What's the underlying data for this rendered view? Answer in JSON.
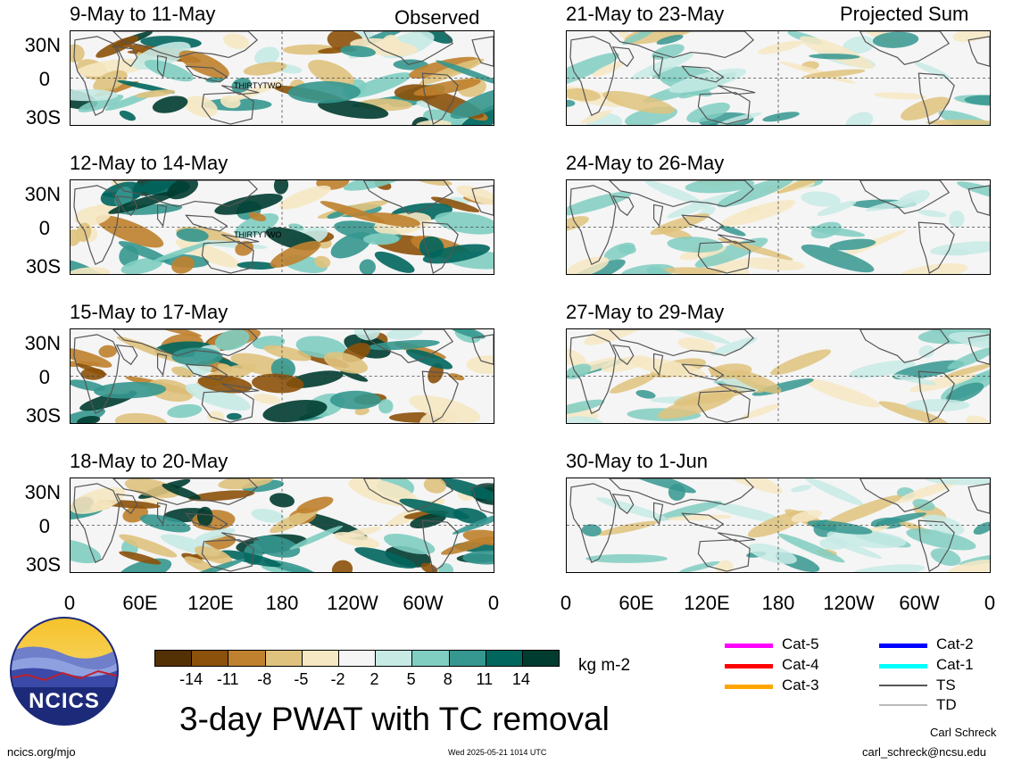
{
  "header": {
    "observed_label": "Observed",
    "projected_label": "Projected Sum"
  },
  "panels": [
    {
      "title": "9-May to 11-May",
      "storm_label": "THIRTYTWO"
    },
    {
      "title": "12-May to 14-May",
      "storm_label": "THIRTYTWO"
    },
    {
      "title": "15-May to 17-May",
      "storm_label": ""
    },
    {
      "title": "18-May to 20-May",
      "storm_label": ""
    },
    {
      "title": "21-May to 23-May",
      "storm_label": ""
    },
    {
      "title": "24-May to 26-May",
      "storm_label": ""
    },
    {
      "title": "27-May to 29-May",
      "storm_label": ""
    },
    {
      "title": "30-May to 1-Jun",
      "storm_label": ""
    }
  ],
  "lat_labels": [
    "30N",
    "0",
    "30S"
  ],
  "lon_labels": [
    "0",
    "60E",
    "120E",
    "180",
    "120W",
    "60W",
    "0"
  ],
  "colorbar": {
    "colors": [
      "#543005",
      "#8c510a",
      "#bf812d",
      "#dfc27d",
      "#f6e8c3",
      "#f5f5f5",
      "#c7eae5",
      "#80cdc1",
      "#35978f",
      "#01665e",
      "#003c30"
    ],
    "tick_labels": [
      "-14",
      "-11",
      "-8",
      "-5",
      "-2",
      "2",
      "5",
      "8",
      "11",
      "14"
    ],
    "units": "kg m-2"
  },
  "legend": [
    {
      "label": "Cat-5",
      "color": "#ff00ff"
    },
    {
      "label": "Cat-4",
      "color": "#ff0000"
    },
    {
      "label": "Cat-3",
      "color": "#ffa500"
    },
    {
      "label": "Cat-2",
      "color": "#0000ff"
    },
    {
      "label": "Cat-1",
      "color": "#00ffff"
    },
    {
      "label": "TS",
      "color": "#555555"
    },
    {
      "label": "TD",
      "color": "#bbbbbb"
    }
  ],
  "logo": {
    "text": "NCICS"
  },
  "footer": {
    "title": "3-day PWAT with TC removal",
    "website": "ncics.org/mjo",
    "timestamp": "Wed 2025-05-21 1014 UTC",
    "author": "Carl Schreck",
    "email": "carl_schreck@ncsu.edu"
  }
}
